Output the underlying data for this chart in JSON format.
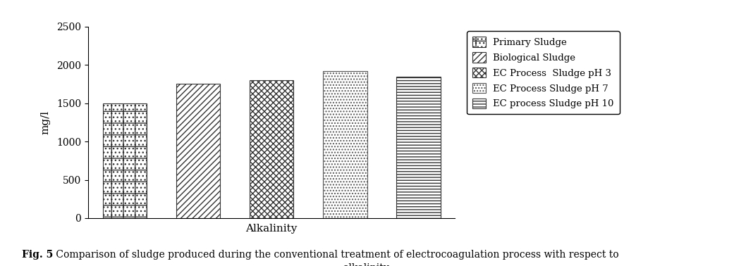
{
  "xlabel": "Alkalinity",
  "ylabel": "mg/l",
  "ylim": [
    0,
    2500
  ],
  "yticks": [
    0,
    500,
    1000,
    1500,
    2000,
    2500
  ],
  "series": [
    {
      "label": "Primary Sludge",
      "value": 1500,
      "hatch": "+...",
      "facecolor": "white",
      "edgecolor": "#333333"
    },
    {
      "label": "Biological Sludge",
      "value": 1750,
      "hatch": "////",
      "facecolor": "white",
      "edgecolor": "#333333"
    },
    {
      "label": "EC Process  Sludge pH 3",
      "value": 1800,
      "hatch": "XXXX",
      "facecolor": "white",
      "edgecolor": "#333333"
    },
    {
      "label": "EC Process Sludge pH 7",
      "value": 1920,
      "hatch": "....",
      "facecolor": "white",
      "edgecolor": "#555555"
    },
    {
      "label": "EC process Sludge pH 10",
      "value": 1850,
      "hatch": "----",
      "facecolor": "white",
      "edgecolor": "#333333"
    }
  ],
  "bar_width": 0.6,
  "figure_width": 10.41,
  "figure_height": 3.78,
  "caption_bold": "Fig. 5",
  "caption_normal": " Comparison of sludge produced during the conventional treatment of electrocoagulation process with respect to alkalinity.",
  "background_color": "#ffffff",
  "font_family": "DejaVu Serif"
}
